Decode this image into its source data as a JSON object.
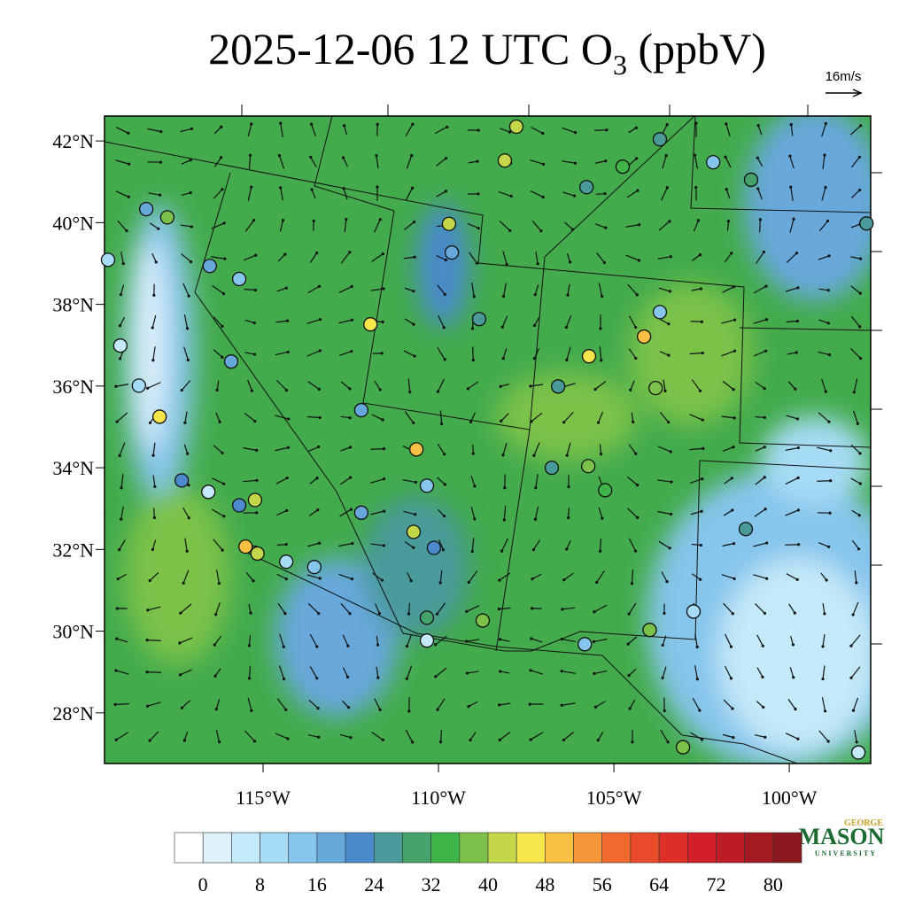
{
  "chart_data": {
    "type": "station-map",
    "title": {
      "main": "2025-12-06 12 UTC O",
      "subscript": "3",
      "suffix": " (ppbV)"
    },
    "reference_vector": "16m/s",
    "lonlim": [
      -119.52,
      -97.68
    ],
    "latlim": [
      26.76,
      42.61
    ],
    "lat_ticks": [
      {
        "value": 42,
        "label": "42°N"
      },
      {
        "value": 40,
        "label": "40°N"
      },
      {
        "value": 38,
        "label": "38°N"
      },
      {
        "value": 36,
        "label": "36°N"
      },
      {
        "value": 34,
        "label": "34°N"
      },
      {
        "value": 32,
        "label": "32°N"
      },
      {
        "value": 30,
        "label": "30°N"
      },
      {
        "value": 28,
        "label": "28°N"
      }
    ],
    "lon_ticks": [
      {
        "value": -115,
        "label": "115°W"
      },
      {
        "value": -110,
        "label": "110°W"
      },
      {
        "value": -105,
        "label": "105°W"
      },
      {
        "value": -100,
        "label": "100°W"
      }
    ],
    "colorbar": {
      "ticks": [
        0,
        8,
        16,
        24,
        32,
        40,
        48,
        56,
        64,
        72,
        80
      ],
      "colors": [
        "#ffffff",
        "#dff2fb",
        "#c4e9f8",
        "#a6dcf5",
        "#86c5ec",
        "#67a8db",
        "#4a8acb",
        "#4a9a9a",
        "#43a36b",
        "#3fb449",
        "#7cc24a",
        "#c4d64a",
        "#f7e54c",
        "#f8c144",
        "#f6963a",
        "#f06a2f",
        "#e84a2a",
        "#dd2e27",
        "#d21f28",
        "#bc1c25",
        "#a31a23",
        "#8b1720"
      ]
    },
    "stations": {
      "lon": [
        -107.78,
        -103.69,
        -102.17,
        -101.09,
        -108.11,
        -105.78,
        -104.75,
        -118.33,
        -117.73,
        -109.7,
        -109.62,
        -116.52,
        -115.68,
        -111.94,
        -108.84,
        -104.14,
        -103.69,
        -105.71,
        -103.81,
        -115.91,
        -112.2,
        -110.63,
        -106.77,
        -105.73,
        -105.25,
        -110.33,
        -112.2,
        -115.5,
        -115.16,
        -114.34,
        -113.54,
        -110.71,
        -110.13,
        -110.33,
        -110.33,
        -108.74,
        -105.83,
        -103.98,
        -102.73,
        -101.24,
        -103.03,
        -98.03,
        -97.8,
        -119.07,
        -118.54,
        -117.95,
        -117.32,
        -116.56,
        -115.68,
        -115.23,
        -119.42,
        -106.59
      ],
      "lat": [
        42.35,
        42.04,
        41.48,
        41.05,
        41.52,
        40.87,
        41.37,
        40.33,
        40.13,
        39.97,
        39.27,
        38.94,
        38.62,
        37.51,
        37.64,
        37.21,
        37.81,
        36.73,
        35.95,
        36.6,
        35.41,
        34.45,
        34.0,
        34.04,
        33.45,
        33.56,
        32.9,
        32.07,
        31.9,
        31.7,
        31.57,
        32.43,
        32.04,
        30.33,
        29.77,
        30.26,
        29.68,
        30.03,
        30.48,
        32.5,
        27.16,
        27.03,
        39.98,
        36.99,
        36.01,
        35.25,
        33.69,
        33.41,
        33.08,
        33.21,
        39.09,
        35.99
      ],
      "values": [
        42,
        24,
        12,
        28,
        40,
        24,
        32,
        16,
        36,
        42,
        16,
        16,
        12,
        46,
        24,
        48,
        14,
        44,
        36,
        16,
        16,
        48,
        24,
        38,
        34,
        14,
        16,
        48,
        40,
        8,
        12,
        42,
        22,
        30,
        4,
        36,
        14,
        38,
        8,
        24,
        36,
        4,
        24,
        6,
        8,
        46,
        20,
        6,
        20,
        40,
        8,
        24
      ]
    },
    "logo": {
      "top": "GEORGE",
      "main": "MASON",
      "bottom": "UNIVERSITY"
    }
  }
}
